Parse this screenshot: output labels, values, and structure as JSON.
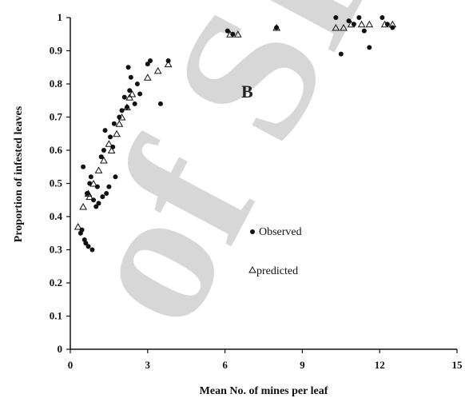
{
  "chart_data": {
    "type": "scatter",
    "xlabel": "Mean No. of mines per leaf",
    "ylabel": "Proportion of infested leaves",
    "panel_label": "B",
    "xlim": [
      0,
      15
    ],
    "ylim": [
      0,
      1
    ],
    "x_ticks": [
      0,
      3,
      6,
      9,
      12,
      15
    ],
    "x_tick_labels": [
      "0",
      "3",
      "6",
      "9",
      "12",
      "15"
    ],
    "y_ticks": [
      0,
      0.1,
      0.2,
      0.3,
      0.4,
      0.5,
      0.6,
      0.7,
      0.8,
      0.9,
      1
    ],
    "y_tick_labels": [
      "0",
      "0.1",
      "0.2",
      "0.3",
      "0.4",
      "0.5",
      "0.6",
      "0.7",
      "0.8",
      "0.9",
      "1"
    ],
    "grid": false,
    "legend_position": "center-right",
    "watermark": "of SID",
    "series": [
      {
        "name": "Observed",
        "marker": "circle",
        "color": "#111111",
        "points": [
          [
            0.4,
            0.35
          ],
          [
            0.45,
            0.36
          ],
          [
            0.5,
            0.55
          ],
          [
            0.55,
            0.33
          ],
          [
            0.6,
            0.32
          ],
          [
            0.65,
            0.47
          ],
          [
            0.7,
            0.31
          ],
          [
            0.75,
            0.5
          ],
          [
            0.8,
            0.52
          ],
          [
            0.85,
            0.3
          ],
          [
            0.9,
            0.45
          ],
          [
            1.0,
            0.43
          ],
          [
            1.05,
            0.49
          ],
          [
            1.1,
            0.44
          ],
          [
            1.2,
            0.58
          ],
          [
            1.25,
            0.46
          ],
          [
            1.3,
            0.6
          ],
          [
            1.35,
            0.66
          ],
          [
            1.4,
            0.47
          ],
          [
            1.5,
            0.49
          ],
          [
            1.55,
            0.64
          ],
          [
            1.65,
            0.61
          ],
          [
            1.7,
            0.68
          ],
          [
            1.75,
            0.52
          ],
          [
            1.9,
            0.7
          ],
          [
            2.0,
            0.72
          ],
          [
            2.1,
            0.76
          ],
          [
            2.2,
            0.73
          ],
          [
            2.25,
            0.85
          ],
          [
            2.3,
            0.78
          ],
          [
            2.35,
            0.82
          ],
          [
            2.5,
            0.74
          ],
          [
            2.6,
            0.8
          ],
          [
            2.7,
            0.77
          ],
          [
            3.0,
            0.86
          ],
          [
            3.1,
            0.87
          ],
          [
            3.5,
            0.74
          ],
          [
            3.8,
            0.87
          ],
          [
            6.1,
            0.96
          ],
          [
            6.3,
            0.95
          ],
          [
            8.0,
            0.97
          ],
          [
            10.3,
            1.0
          ],
          [
            10.5,
            0.89
          ],
          [
            10.8,
            0.99
          ],
          [
            11.0,
            0.98
          ],
          [
            11.2,
            1.0
          ],
          [
            11.4,
            0.96
          ],
          [
            11.6,
            0.91
          ],
          [
            12.1,
            1.0
          ],
          [
            12.3,
            0.98
          ],
          [
            12.5,
            0.97
          ]
        ]
      },
      {
        "name": "predicted",
        "marker": "triangle",
        "color": "#111111",
        "points": [
          [
            0.3,
            0.37
          ],
          [
            0.5,
            0.43
          ],
          [
            0.7,
            0.47
          ],
          [
            0.75,
            0.46
          ],
          [
            0.9,
            0.5
          ],
          [
            1.1,
            0.54
          ],
          [
            1.3,
            0.57
          ],
          [
            1.5,
            0.62
          ],
          [
            1.6,
            0.6
          ],
          [
            1.8,
            0.65
          ],
          [
            1.9,
            0.68
          ],
          [
            2.0,
            0.7
          ],
          [
            2.2,
            0.73
          ],
          [
            2.3,
            0.76
          ],
          [
            2.4,
            0.77
          ],
          [
            3.0,
            0.82
          ],
          [
            3.4,
            0.84
          ],
          [
            3.8,
            0.86
          ],
          [
            6.2,
            0.95
          ],
          [
            6.5,
            0.95
          ],
          [
            8.0,
            0.97
          ],
          [
            10.3,
            0.97
          ],
          [
            10.6,
            0.97
          ],
          [
            10.9,
            0.98
          ],
          [
            11.3,
            0.98
          ],
          [
            11.6,
            0.98
          ],
          [
            12.2,
            0.98
          ],
          [
            12.5,
            0.98
          ]
        ]
      }
    ],
    "legend": [
      {
        "marker": "circle",
        "label": "Observed"
      },
      {
        "marker": "triangle",
        "label": "predicted"
      }
    ]
  }
}
